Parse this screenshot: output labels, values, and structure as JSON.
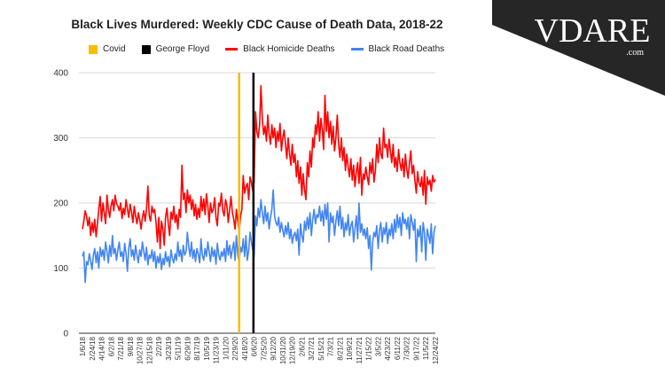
{
  "logo": {
    "text": "VDARE",
    "suffix": ".com"
  },
  "chart_data": {
    "type": "line",
    "title": "Black Lives Murdered: Weekly CDC Cause of Death Data, 2018-22",
    "xlabel": "",
    "ylabel": "",
    "ylim": [
      0,
      400
    ],
    "yticks": [
      "0",
      "100",
      "200",
      "300",
      "400"
    ],
    "grid": true,
    "legend_position": "top",
    "start_week": "1/6/18",
    "x_tick_labels": [
      "1/6/18",
      "2/24/18",
      "4/14/18",
      "6/2/18",
      "7/21/18",
      "9/8/18",
      "10/27/18",
      "12/15/18",
      "2/2/19",
      "3/23/19",
      "5/11/19",
      "6/29/19",
      "8/17/19",
      "10/5/19",
      "11/23/19",
      "1/11/20",
      "2/29/20",
      "4/18/20",
      "6/6/20",
      "7/25/20",
      "9/12/20",
      "10/31/20",
      "12/19/20",
      "2/6/21",
      "3/27/21",
      "5/15/21",
      "7/3/21",
      "8/21/21",
      "10/9/21",
      "11/27/21",
      "1/15/22",
      "3/5/22",
      "4/23/22",
      "6/11/22",
      "7/30/22",
      "9/17/22",
      "11/5/22",
      "12/24/22"
    ],
    "markers": [
      {
        "name": "Covid",
        "date": "3/14/20",
        "week_index": 115,
        "color": "#fbbc04"
      },
      {
        "name": "George Floyd",
        "date": "5/30/20",
        "week_index": 125.5,
        "color": "#000000"
      }
    ],
    "series": [
      {
        "name": "Black Homicide Deaths",
        "color": "#ff0000",
        "values": [
          160,
          172,
          188,
          180,
          165,
          178,
          150,
          170,
          155,
          175,
          148,
          168,
          190,
          210,
          172,
          200,
          185,
          168,
          212,
          190,
          178,
          196,
          205,
          188,
          212,
          199,
          195,
          188,
          200,
          176,
          192,
          182,
          205,
          190,
          178,
          198,
          187,
          170,
          195,
          180,
          168,
          185,
          175,
          160,
          178,
          188,
          172,
          190,
          226,
          180,
          172,
          195,
          185,
          190,
          170,
          140,
          178,
          130,
          172,
          160,
          135,
          178,
          192,
          168,
          150,
          186,
          175,
          195,
          170,
          182,
          160,
          190,
          178,
          258,
          205,
          215,
          185,
          220,
          200,
          212,
          190,
          205,
          180,
          198,
          175,
          192,
          178,
          210,
          188,
          206,
          182,
          214,
          195,
          170,
          200,
          185,
          190,
          208,
          178,
          165,
          200,
          195,
          215,
          188,
          180,
          205,
          196,
          170,
          190,
          210,
          186,
          175,
          160,
          190,
          172,
          155,
          180,
          190,
          242,
          215,
          225,
          230,
          205,
          240,
          232,
          218,
          232,
          340,
          310,
          300,
          320,
          380,
          330,
          305,
          318,
          295,
          335,
          305,
          290,
          320,
          300,
          315,
          285,
          310,
          295,
          322,
          280,
          300,
          312,
          290,
          268,
          300,
          275,
          258,
          290,
          262,
          275,
          240,
          265,
          230,
          255,
          212,
          245,
          220,
          205,
          262,
          240,
          280,
          255,
          300,
          285,
          320,
          305,
          340,
          295,
          330,
          312,
          282,
          365,
          310,
          340,
          300,
          325,
          290,
          318,
          280,
          300,
          335,
          290,
          270,
          300,
          265,
          285,
          250,
          275,
          255,
          240,
          268,
          235,
          258,
          225,
          248,
          262,
          230,
          270,
          212,
          245,
          236,
          255,
          240,
          228,
          262,
          245,
          268,
          232,
          250,
          290,
          262,
          300,
          275,
          268,
          315,
          285,
          290,
          270,
          298,
          280,
          262,
          290,
          255,
          270,
          248,
          282,
          262,
          250,
          268,
          240,
          275,
          252,
          238,
          262,
          280,
          245,
          258,
          235,
          215,
          248,
          230,
          225,
          240,
          212,
          250,
          198,
          240,
          228,
          235,
          218,
          242,
          232,
          236
        ]
      },
      {
        "name": "Black Road Deaths",
        "color": "#4285f4",
        "values": [
          118,
          125,
          78,
          110,
          105,
          122,
          112,
          98,
          120,
          130,
          108,
          125,
          100,
          132,
          118,
          128,
          112,
          140,
          125,
          108,
          135,
          118,
          150,
          122,
          130,
          112,
          128,
          140,
          118,
          125,
          110,
          138,
          122,
          95,
          130,
          145,
          118,
          128,
          112,
          135,
          120,
          108,
          128,
          118,
          140,
          125,
          112,
          132,
          105,
          120,
          115,
          128,
          110,
          125,
          100,
          118,
          108,
          122,
          98,
          115,
          105,
          125,
          110,
          118,
          102,
          128,
          115,
          108,
          122,
          112,
          140,
          118,
          128,
          110,
          135,
          120,
          125,
          155,
          132,
          118,
          140,
          115,
          128,
          110,
          130,
          122,
          108,
          145,
          120,
          112,
          130,
          118,
          140,
          125,
          110,
          132,
          118,
          128,
          106,
          138,
          120,
          112,
          125,
          118,
          130,
          110,
          142,
          120,
          135,
          115,
          128,
          140,
          112,
          150,
          120,
          108,
          132,
          125,
          145,
          118,
          150,
          112,
          128,
          155,
          140,
          128,
          118,
          180,
          165,
          192,
          178,
          205,
          185,
          168,
          195,
          172,
          185,
          160,
          178,
          190,
          220,
          180,
          170,
          165,
          178,
          155,
          170,
          158,
          148,
          165,
          152,
          170,
          145,
          160,
          138,
          150,
          155,
          142,
          160,
          120,
          168,
          150,
          140,
          172,
          158,
          178,
          160,
          185,
          150,
          175,
          190,
          168,
          182,
          178,
          195,
          172,
          188,
          165,
          198,
          175,
          200,
          140,
          185,
          170,
          180,
          150,
          172,
          188,
          165,
          195,
          160,
          178,
          148,
          170,
          158,
          182,
          150,
          165,
          172,
          140,
          160,
          180,
          145,
          200,
          155,
          168,
          150,
          160,
          145,
          162,
          130,
          150,
          97,
          140,
          155,
          148,
          165,
          130,
          158,
          170,
          140,
          162,
          152,
          170,
          138,
          160,
          150,
          168,
          145,
          175,
          155,
          182,
          162,
          178,
          150,
          185,
          168,
          175,
          160,
          178,
          145,
          182,
          170,
          158,
          175,
          110,
          160,
          148,
          165,
          125,
          170,
          155,
          112,
          160,
          150,
          138,
          168,
          122,
          155,
          165
        ]
      }
    ]
  }
}
